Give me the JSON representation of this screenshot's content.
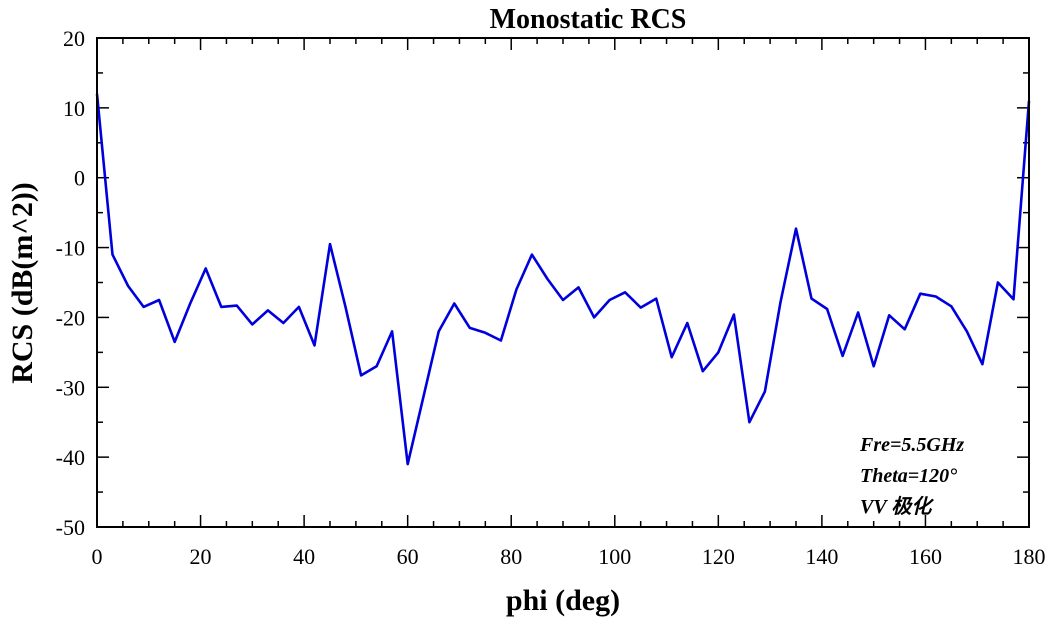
{
  "chart_data": {
    "type": "line",
    "title": "Monostatic RCS",
    "xlabel": "phi (deg)",
    "ylabel": "RCS (dB(m^2))",
    "xlim": [
      0,
      180
    ],
    "ylim": [
      -50,
      20
    ],
    "xticks": [
      0,
      20,
      40,
      60,
      80,
      100,
      120,
      140,
      160,
      180
    ],
    "yticks": [
      20,
      10,
      0,
      -10,
      -20,
      -30,
      -40,
      -50
    ],
    "grid": false,
    "series": [
      {
        "color": "#0000dd",
        "x": [
          0,
          3,
          6,
          9,
          12,
          15,
          18,
          21,
          24,
          27,
          30,
          33,
          36,
          39,
          42,
          45,
          48,
          51,
          54,
          57,
          60,
          63,
          66,
          69,
          72,
          75,
          78,
          81,
          84,
          87,
          90,
          93,
          96,
          99,
          102,
          105,
          108,
          111,
          114,
          117,
          120,
          123,
          126,
          129,
          132,
          135,
          138,
          141,
          144,
          147,
          150,
          153,
          156,
          159,
          162,
          165,
          168,
          171,
          174,
          177,
          180
        ],
        "y": [
          12,
          -11,
          -15.5,
          -18.5,
          -17.5,
          -23.5,
          -18,
          -13,
          -18.5,
          -18.3,
          -21,
          -19,
          -20.8,
          -18.5,
          -24,
          -9.5,
          -18.5,
          -28.3,
          -27,
          -22,
          -41,
          -31.5,
          -22,
          -18,
          -21.5,
          -22.2,
          -23.3,
          -16,
          -11,
          -14.5,
          -17.5,
          -15.7,
          -20,
          -17.5,
          -16.4,
          -18.6,
          -17.3,
          -25.7,
          -20.8,
          -27.7,
          -25,
          -19.6,
          -35,
          -30.6,
          -17.8,
          -7.3,
          -17.3,
          -18.8,
          -25.5,
          -19.3,
          -27,
          -19.7,
          -21.7,
          -16.6,
          -17,
          -18.4,
          -22,
          -26.7,
          -15,
          -17.4,
          11
        ]
      }
    ],
    "annotations": [
      "Fre=5.5GHz",
      "Theta=120°",
      "VV 极化"
    ]
  }
}
